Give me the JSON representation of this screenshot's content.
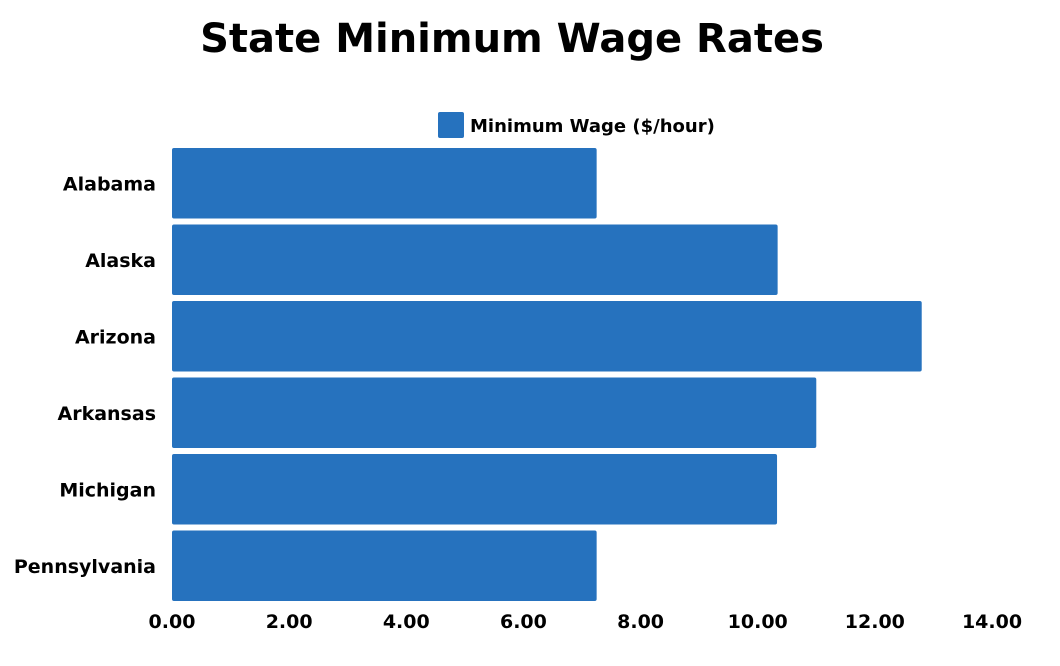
{
  "chart_data": {
    "type": "bar",
    "orientation": "horizontal",
    "title": "State Minimum Wage Rates",
    "categories": [
      "Alabama",
      "Alaska",
      "Arizona",
      "Arkansas",
      "Michigan",
      "Pennsylvania"
    ],
    "series": [
      {
        "name": "Minimum Wage ($/hour)",
        "values": [
          7.25,
          10.34,
          12.8,
          11.0,
          10.33,
          7.25
        ],
        "color": "#2672BE"
      }
    ],
    "xlim": [
      0,
      14
    ],
    "xticks": [
      "0.00",
      "2.00",
      "4.00",
      "6.00",
      "8.00",
      "10.00",
      "12.00",
      "14.00"
    ],
    "xlabel": "",
    "ylabel": "",
    "grid": false,
    "legend_position": "top"
  }
}
